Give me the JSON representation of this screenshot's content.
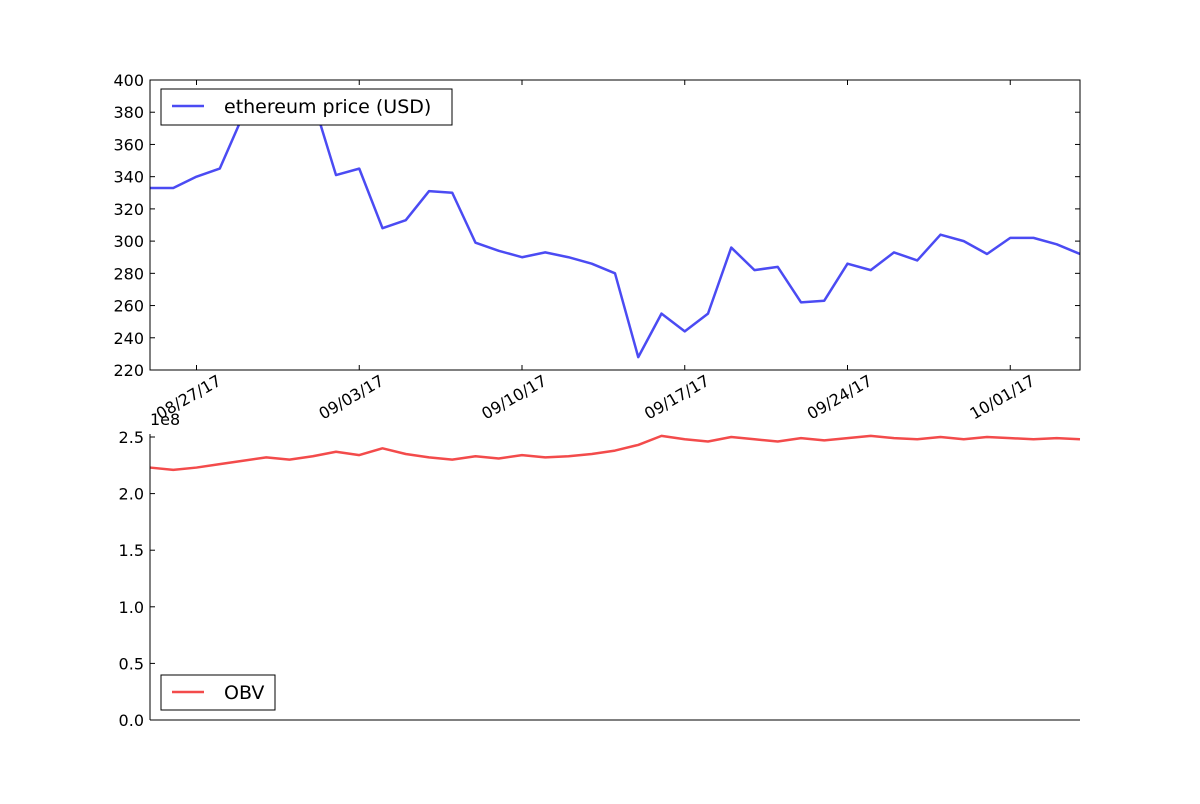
{
  "chart_data": [
    {
      "type": "line",
      "title": "",
      "xlabel": "",
      "ylabel": "",
      "ylim": [
        220,
        400
      ],
      "yticks": [
        220,
        240,
        260,
        280,
        300,
        320,
        340,
        360,
        380,
        400
      ],
      "xlim": [
        "2017-08-25",
        "2017-10-04"
      ],
      "xtick_labels": [
        "08/27/17",
        "09/03/17",
        "09/10/17",
        "09/17/17",
        "09/24/17",
        "10/01/17"
      ],
      "legend_position": "upper-left",
      "grid": false,
      "series": [
        {
          "name": "ethereum price (USD)",
          "color": "#4b4bf3",
          "x": [
            "2017-08-25",
            "2017-08-26",
            "2017-08-27",
            "2017-08-28",
            "2017-08-29",
            "2017-08-30",
            "2017-08-31",
            "2017-09-01",
            "2017-09-02",
            "2017-09-03",
            "2017-09-04",
            "2017-09-05",
            "2017-09-06",
            "2017-09-07",
            "2017-09-08",
            "2017-09-09",
            "2017-09-10",
            "2017-09-11",
            "2017-09-12",
            "2017-09-13",
            "2017-09-14",
            "2017-09-15",
            "2017-09-16",
            "2017-09-17",
            "2017-09-18",
            "2017-09-19",
            "2017-09-20",
            "2017-09-21",
            "2017-09-22",
            "2017-09-23",
            "2017-09-24",
            "2017-09-25",
            "2017-09-26",
            "2017-09-27",
            "2017-09-28",
            "2017-09-29",
            "2017-09-30",
            "2017-10-01",
            "2017-10-02",
            "2017-10-03",
            "2017-10-04"
          ],
          "values": [
            333,
            333,
            340,
            345,
            378,
            387,
            390,
            388,
            341,
            345,
            308,
            313,
            331,
            330,
            299,
            294,
            290,
            293,
            290,
            286,
            280,
            228,
            255,
            244,
            255,
            296,
            282,
            284,
            262,
            263,
            286,
            282,
            293,
            288,
            304,
            300,
            292,
            302,
            302,
            298,
            292
          ]
        }
      ]
    },
    {
      "type": "line",
      "title": "",
      "xlabel": "",
      "ylabel": "",
      "ylim": [
        0.0,
        2.5
      ],
      "yticks": [
        "0.0",
        "0.5",
        "1.0",
        "1.5",
        "2.0",
        "2.5"
      ],
      "offset_text": "1e8",
      "legend_position": "lower-left",
      "grid": false,
      "series": [
        {
          "name": "OBV",
          "color": "#f34b4b",
          "values": [
            2.23,
            2.21,
            2.23,
            2.26,
            2.29,
            2.32,
            2.3,
            2.33,
            2.37,
            2.34,
            2.4,
            2.35,
            2.32,
            2.3,
            2.33,
            2.31,
            2.34,
            2.32,
            2.33,
            2.35,
            2.38,
            2.43,
            2.51,
            2.48,
            2.46,
            2.5,
            2.48,
            2.46,
            2.49,
            2.47,
            2.49,
            2.51,
            2.49,
            2.48,
            2.5,
            2.48,
            2.5,
            2.49,
            2.48,
            2.49,
            2.48
          ]
        }
      ]
    }
  ]
}
